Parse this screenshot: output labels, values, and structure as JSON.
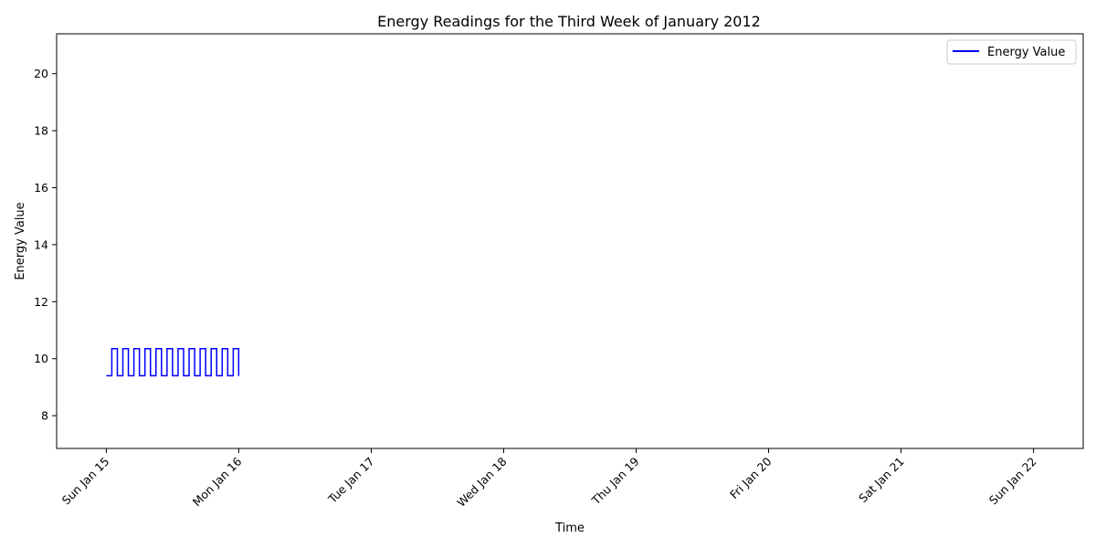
{
  "chart_data": {
    "type": "line",
    "title": "Energy Readings for the Third Week of January 2012",
    "xlabel": "Time",
    "ylabel": "Energy Value",
    "xlim": [
      "2012-01-14T15:00",
      "2012-01-22T09:00"
    ],
    "ylim": [
      6.85,
      21.4
    ],
    "x_ticks": [
      "Sun Jan 15",
      "Mon Jan 16",
      "Tue Jan 17",
      "Wed Jan 18",
      "Thu Jan 19",
      "Fri Jan 20",
      "Sat Jan 21",
      "Sun Jan 22"
    ],
    "x_tick_dates": [
      "2012-01-15",
      "2012-01-16",
      "2012-01-17",
      "2012-01-18",
      "2012-01-19",
      "2012-01-20",
      "2012-01-21",
      "2012-01-22"
    ],
    "y_ticks": [
      8,
      10,
      12,
      14,
      16,
      18,
      20
    ],
    "grid": false,
    "legend_position": "top-right",
    "series": [
      {
        "name": "Energy Value",
        "color": "#0000ff",
        "points": [
          [
            "2012-01-15T00:00",
            9.4
          ],
          [
            "2012-01-15T01:00",
            10.35
          ],
          [
            "2012-01-15T02:00",
            9.4
          ],
          [
            "2012-01-15T03:00",
            10.35
          ],
          [
            "2012-01-15T04:00",
            9.4
          ],
          [
            "2012-01-15T05:00",
            10.35
          ],
          [
            "2012-01-15T06:00",
            9.4
          ],
          [
            "2012-01-15T07:00",
            10.35
          ],
          [
            "2012-01-15T08:00",
            9.4
          ],
          [
            "2012-01-15T09:00",
            10.35
          ],
          [
            "2012-01-15T10:00",
            9.4
          ],
          [
            "2012-01-15T11:00",
            10.35
          ],
          [
            "2012-01-15T12:00",
            9.4
          ],
          [
            "2012-01-15T13:00",
            10.35
          ],
          [
            "2012-01-15T14:00",
            9.4
          ],
          [
            "2012-01-15T15:00",
            10.35
          ],
          [
            "2012-01-15T16:00",
            9.4
          ],
          [
            "2012-01-15T17:00",
            10.35
          ],
          [
            "2012-01-15T18:00",
            9.4
          ],
          [
            "2012-01-15T19:00",
            10.35
          ],
          [
            "2012-01-15T20:00",
            9.4
          ],
          [
            "2012-01-15T21:00",
            10.35
          ],
          [
            "2012-01-15T22:00",
            9.4
          ],
          [
            "2012-01-15T23:00",
            10.35
          ],
          [
            "2012-01-15T23:59",
            9.4
          ],
          [
            "2012-01-16T00:00",
            9.4
          ],
          [
            "2012-01-15T23:59",
            9.4
          ]
        ]
      }
    ]
  }
}
